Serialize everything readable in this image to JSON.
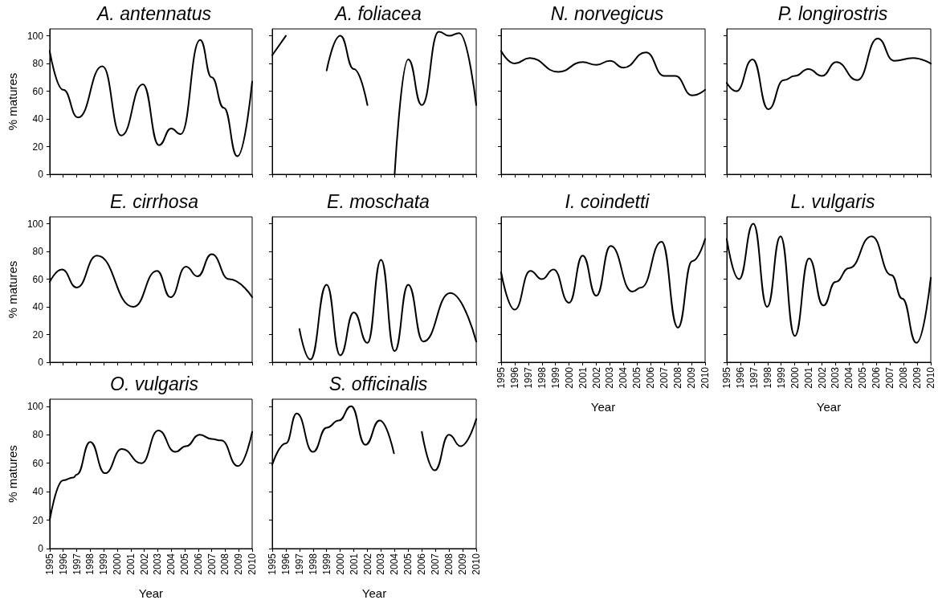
{
  "chart_data": [
    {
      "type": "line",
      "title": "A. antennatus",
      "ylabel": "% matures",
      "tick_labels": "y",
      "color": "#000000",
      "xlim": [
        1995,
        2010
      ],
      "ylim": [
        0,
        105
      ],
      "xticks": [
        1995,
        1996,
        1997,
        1998,
        1999,
        2000,
        2001,
        2002,
        2003,
        2004,
        2005,
        2006,
        2007,
        2008,
        2009,
        2010
      ],
      "yticks": [
        0,
        20,
        40,
        60,
        80,
        100
      ],
      "x": [
        1995,
        1996,
        1997.1,
        1998.9,
        2000.3,
        2001.9,
        2003.1,
        2004,
        2004.7,
        2006.15,
        2007,
        2007.9,
        2008.9,
        2010
      ],
      "values": [
        89,
        61,
        41,
        78,
        28,
        65,
        21,
        33,
        29,
        97,
        70,
        48,
        13,
        67
      ]
    },
    {
      "type": "line",
      "title": "A. foliacea",
      "tick_labels": false,
      "color": "#000000",
      "xlim": [
        1995,
        2010
      ],
      "ylim": [
        0,
        105
      ],
      "xticks": [
        1995,
        1996,
        1997,
        1998,
        1999,
        2000,
        2001,
        2002,
        2003,
        2004,
        2005,
        2006,
        2007,
        2008,
        2009,
        2010
      ],
      "yticks": [
        0,
        20,
        40,
        60,
        80,
        100
      ],
      "x": [
        1995,
        1996,
        1997.5,
        1999,
        2000,
        2001,
        2002,
        2003,
        2004,
        2005,
        2006,
        2007.25,
        2008,
        2008.75,
        2010
      ],
      "values": [
        86,
        100,
        null,
        75,
        100,
        76,
        50,
        null,
        0,
        83,
        50,
        103,
        100,
        102,
        50
      ]
    },
    {
      "type": "line",
      "title": "N. norvegicus",
      "tick_labels": false,
      "color": "#000000",
      "xlim": [
        1995,
        2010
      ],
      "ylim": [
        0,
        105
      ],
      "xticks": [
        1995,
        1996,
        1997,
        1998,
        1999,
        2000,
        2001,
        2002,
        2003,
        2004,
        2005,
        2006,
        2007,
        2008,
        2009,
        2010
      ],
      "yticks": [
        0,
        20,
        40,
        60,
        80,
        100
      ],
      "x": [
        1995,
        1996,
        1997.1,
        1999.2,
        2001,
        2002,
        2003,
        2004,
        2005.65,
        2007,
        2007.8,
        2009.05,
        2010
      ],
      "values": [
        89,
        80,
        84,
        74,
        81,
        79,
        82,
        77,
        88,
        71,
        71,
        57,
        61
      ]
    },
    {
      "type": "line",
      "title": "P. longirostris",
      "tick_labels": false,
      "color": "#000000",
      "xlim": [
        1995,
        2010
      ],
      "ylim": [
        0,
        105
      ],
      "xticks": [
        1995,
        1996,
        1997,
        1998,
        1999,
        2000,
        2001,
        2002,
        2003,
        2004,
        2005,
        2006,
        2007,
        2008,
        2009,
        2010
      ],
      "yticks": [
        0,
        20,
        40,
        60,
        80,
        100
      ],
      "x": [
        1995,
        1995.7,
        1996.9,
        1998.05,
        1999.2,
        2000,
        2001,
        2002,
        2003.05,
        2004.6,
        2006.1,
        2007.3,
        2008.7,
        2010
      ],
      "values": [
        66,
        60,
        83,
        47,
        68,
        71,
        76,
        71,
        81,
        68,
        98,
        82,
        84,
        80
      ]
    },
    {
      "type": "line",
      "title": "E. cirrhosa",
      "ylabel": "% matures",
      "tick_labels": "y",
      "color": "#000000",
      "xlim": [
        1995,
        2010
      ],
      "ylim": [
        0,
        105
      ],
      "xticks": [
        1995,
        1996,
        1997,
        1998,
        1999,
        2000,
        2001,
        2002,
        2003,
        2004,
        2005,
        2006,
        2007,
        2008,
        2009,
        2010
      ],
      "yticks": [
        0,
        20,
        40,
        60,
        80,
        100
      ],
      "x": [
        1995,
        1995.9,
        1997,
        1998.5,
        2001.2,
        2002.95,
        2003.95,
        2005.1,
        2005.95,
        2007,
        2008.3,
        2010
      ],
      "values": [
        58,
        67,
        54,
        77,
        40,
        66,
        47,
        69,
        62,
        78,
        60,
        47
      ]
    },
    {
      "type": "line",
      "title": "E. moschata",
      "tick_labels": false,
      "color": "#000000",
      "xlim": [
        1995,
        2010
      ],
      "ylim": [
        0,
        105
      ],
      "xticks": [
        1995,
        1996,
        1997,
        1998,
        1999,
        2000,
        2001,
        2002,
        2003,
        2004,
        2005,
        2006,
        2007,
        2008,
        2009,
        2010
      ],
      "yticks": [
        0,
        20,
        40,
        60,
        80,
        100
      ],
      "x": [
        1997,
        1997.8,
        1999,
        2000,
        2001,
        2002,
        2003,
        2004,
        2005,
        2006.1,
        2008.1,
        2010
      ],
      "values": [
        24,
        2,
        56,
        5,
        36,
        14,
        74,
        8,
        56,
        15,
        50,
        15
      ]
    },
    {
      "type": "line",
      "title": "I. coindetti",
      "xlabel": "Year",
      "tick_labels": "x",
      "color": "#000000",
      "xlim": [
        1995,
        2010
      ],
      "ylim": [
        0,
        105
      ],
      "xticks": [
        1995,
        1996,
        1997,
        1998,
        1999,
        2000,
        2001,
        2002,
        2003,
        2004,
        2005,
        2006,
        2007,
        2008,
        2009,
        2010
      ],
      "yticks": [
        0,
        20,
        40,
        60,
        80,
        100
      ],
      "x": [
        1995,
        1996,
        1997.15,
        1998,
        1998.85,
        2000,
        2001,
        2002,
        2003.05,
        2004.65,
        2005.3,
        2006.8,
        2008,
        2009.05,
        2010
      ],
      "values": [
        65,
        38,
        66,
        60,
        67,
        43,
        77,
        48,
        84,
        51,
        54,
        87,
        25,
        73,
        89
      ]
    },
    {
      "type": "line",
      "title": "L. vulgaris",
      "xlabel": "Year",
      "tick_labels": "x",
      "color": "#000000",
      "xlim": [
        1995,
        2010
      ],
      "ylim": [
        0,
        105
      ],
      "xticks": [
        1995,
        1996,
        1997,
        1998,
        1999,
        2000,
        2001,
        2002,
        2003,
        2004,
        2005,
        2006,
        2007,
        2008,
        2009,
        2010
      ],
      "yticks": [
        0,
        20,
        40,
        60,
        80,
        100
      ],
      "x": [
        1995,
        1995.9,
        1996.95,
        1997.97,
        1998.95,
        2000,
        2001.05,
        2002.1,
        2003,
        2004,
        2005.65,
        2007.1,
        2007.9,
        2008.95,
        2010
      ],
      "values": [
        89,
        60,
        100,
        40,
        91,
        19,
        75,
        41,
        58,
        68,
        91,
        63,
        46,
        14,
        61
      ]
    },
    {
      "type": "line",
      "title": "O. vulgaris",
      "xlabel": "Year",
      "ylabel": "% matures",
      "color": "#000000",
      "xlim": [
        1995,
        2010
      ],
      "ylim": [
        0,
        105
      ],
      "xticks": [
        1995,
        1996,
        1997,
        1998,
        1999,
        2000,
        2001,
        2002,
        2003,
        2004,
        2005,
        2006,
        2007,
        2008,
        2009,
        2010
      ],
      "yticks": [
        0,
        20,
        40,
        60,
        80,
        100
      ],
      "x": [
        1995,
        1996,
        1996.75,
        1997,
        1998,
        1999.1,
        2000.35,
        2001.8,
        2003.05,
        2004.3,
        2005.1,
        2006.1,
        2007,
        2007.7,
        2008.95,
        2010
      ],
      "values": [
        20,
        48,
        50,
        52,
        75,
        53,
        70,
        60,
        83,
        68,
        72,
        80,
        77,
        76,
        58,
        82
      ]
    },
    {
      "type": "line",
      "title": "S. officinalis",
      "xlabel": "Year",
      "tick_labels": "x",
      "color": "#000000",
      "xlim": [
        1995,
        2010
      ],
      "ylim": [
        0,
        105
      ],
      "xticks": [
        1995,
        1996,
        1997,
        1998,
        1999,
        2000,
        2001,
        2002,
        2003,
        2004,
        2005,
        2006,
        2007,
        2008,
        2009,
        2010
      ],
      "yticks": [
        0,
        20,
        40,
        60,
        80,
        100
      ],
      "x": [
        1995,
        1996,
        1996.8,
        1998,
        1999,
        1999.9,
        2000.8,
        2001.85,
        2002.9,
        2003.95,
        2005,
        2006,
        2006.95,
        2008,
        2008.85,
        2010
      ],
      "values": [
        59,
        74,
        95,
        68,
        85,
        90,
        100,
        73,
        90,
        67,
        null,
        82,
        55,
        80,
        72,
        91
      ]
    }
  ]
}
